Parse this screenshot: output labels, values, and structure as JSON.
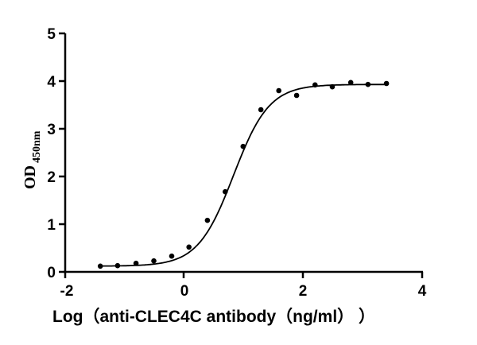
{
  "chart_data": {
    "type": "scatter",
    "title": "",
    "xlabel": "Log（anti-CLEC4C antibody（ng/ml））",
    "ylabel": "OD450nm",
    "ylabel_main": "OD",
    "ylabel_sub": "450nm",
    "xlim": [
      -2,
      4
    ],
    "ylim": [
      0,
      5
    ],
    "xticks": [
      -2,
      0,
      2,
      4
    ],
    "yticks": [
      0,
      1,
      2,
      3,
      4,
      5
    ],
    "grid": false,
    "legend": null,
    "fit": "four-parameter logistic (sigmoidal curve)",
    "fit_params": {
      "bottom": 0.12,
      "top": 3.93,
      "logEC50": 0.83,
      "hill": 1.45
    },
    "x": [
      -1.41,
      -1.12,
      -0.81,
      -0.51,
      -0.21,
      0.08,
      0.39,
      0.69,
      0.99,
      1.29,
      1.59,
      1.89,
      2.2,
      2.49,
      2.8,
      3.09,
      3.4
    ],
    "y": [
      0.12,
      0.13,
      0.18,
      0.23,
      0.33,
      0.52,
      1.08,
      1.68,
      2.63,
      3.4,
      3.8,
      3.7,
      3.92,
      3.88,
      3.97,
      3.93,
      3.95
    ]
  },
  "labels": {
    "x_axis": "Log（anti-CLEC4C antibody（ng/ml）  ）",
    "y_main": "OD",
    "y_sub": "450nm",
    "xtick_0": "-2",
    "xtick_1": "0",
    "xtick_2": "2",
    "xtick_3": "4",
    "ytick_0": "0",
    "ytick_1": "1",
    "ytick_2": "2",
    "ytick_3": "3",
    "ytick_4": "4",
    "ytick_5": "5"
  }
}
